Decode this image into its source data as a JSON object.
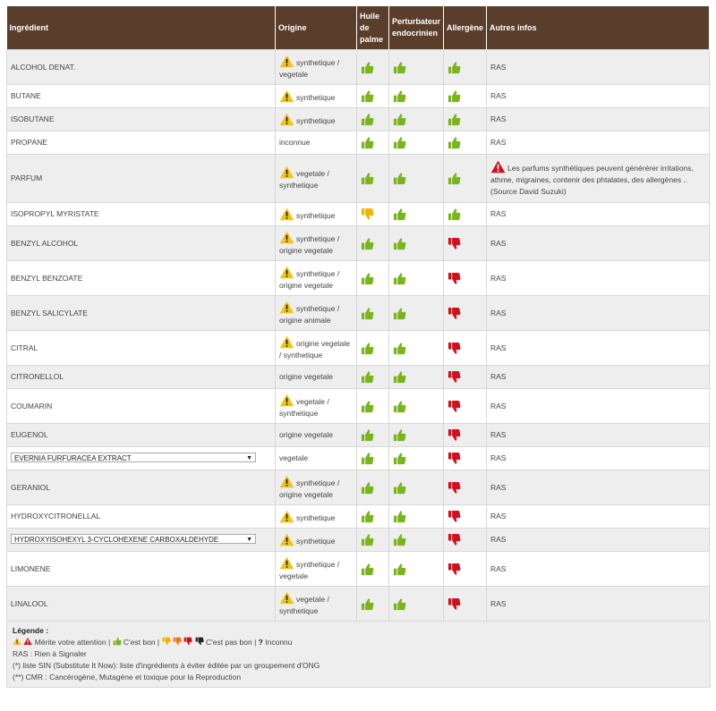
{
  "headers": {
    "ingredient": "Ingrédient",
    "origin": "Origine",
    "palm_l1": "Huile",
    "palm_l2": "de",
    "palm_l3": "palme",
    "endo_l1": "Perturbateur",
    "endo_l2": "endocrinien",
    "allergen": "Allergène",
    "other": "Autres infos"
  },
  "rows": [
    {
      "name": "ALCOHOL DENAT.",
      "select": false,
      "warn": true,
      "origin": "synthetique / vegetale",
      "palm": "good",
      "endo": "good",
      "allergen": "good",
      "info": "RAS"
    },
    {
      "name": "BUTANE",
      "select": false,
      "warn": true,
      "origin": "synthetique",
      "palm": "good",
      "endo": "good",
      "allergen": "good",
      "info": "RAS"
    },
    {
      "name": "ISOBUTANE",
      "select": false,
      "warn": true,
      "origin": "synthetique",
      "palm": "good",
      "endo": "good",
      "allergen": "good",
      "info": "RAS"
    },
    {
      "name": "PROPANE",
      "select": false,
      "warn": false,
      "origin": "inconnue",
      "palm": "good",
      "endo": "good",
      "allergen": "good",
      "info": "RAS"
    },
    {
      "name": "PARFUM",
      "select": false,
      "warn": true,
      "origin": "vegetale / synthetique",
      "palm": "good",
      "endo": "good",
      "allergen": "good",
      "info": "Les parfums synthétiques peuvent générérer irritations, athme, migraines, contenir des phtalates, des allergènes .. (Source David Suzuki)",
      "info_alert": true
    },
    {
      "name": "ISOPROPYL MYRISTATE",
      "select": false,
      "warn": true,
      "origin": "synthetique",
      "palm": "meh",
      "endo": "good",
      "allergen": "good",
      "info": "RAS"
    },
    {
      "name": "BENZYL ALCOHOL",
      "select": false,
      "warn": true,
      "origin": "synthetique / origine vegetale",
      "palm": "good",
      "endo": "good",
      "allergen": "bad",
      "info": "RAS"
    },
    {
      "name": "BENZYL BENZOATE",
      "select": false,
      "warn": true,
      "origin": "synthetique / origine vegetale",
      "palm": "good",
      "endo": "good",
      "allergen": "bad",
      "info": "RAS"
    },
    {
      "name": "BENZYL SALICYLATE",
      "select": false,
      "warn": true,
      "origin": "synthetique / origine animale",
      "palm": "good",
      "endo": "good",
      "allergen": "bad",
      "info": "RAS"
    },
    {
      "name": "CITRAL",
      "select": false,
      "warn": true,
      "origin": "origine vegetale / synthetique",
      "palm": "good",
      "endo": "good",
      "allergen": "bad",
      "info": "RAS"
    },
    {
      "name": "CITRONELLOL",
      "select": false,
      "warn": false,
      "origin": "origine vegetale",
      "palm": "good",
      "endo": "good",
      "allergen": "bad",
      "info": "RAS"
    },
    {
      "name": "COUMARIN",
      "select": false,
      "warn": true,
      "origin": "vegetale / synthetique",
      "palm": "good",
      "endo": "good",
      "allergen": "bad",
      "info": "RAS"
    },
    {
      "name": "EUGENOL",
      "select": false,
      "warn": false,
      "origin": "origine vegetale",
      "palm": "good",
      "endo": "good",
      "allergen": "bad",
      "info": "RAS"
    },
    {
      "name": "EVERNIA FURFURACEA EXTRACT",
      "select": true,
      "warn": false,
      "origin": "vegetale",
      "palm": "good",
      "endo": "good",
      "allergen": "bad",
      "info": "RAS"
    },
    {
      "name": "GERANIOL",
      "select": false,
      "warn": true,
      "origin": "synthetique / origine vegetale",
      "palm": "good",
      "endo": "good",
      "allergen": "bad",
      "info": "RAS"
    },
    {
      "name": "HYDROXYCITRONELLAL",
      "select": false,
      "warn": true,
      "origin": "synthetique",
      "palm": "good",
      "endo": "good",
      "allergen": "bad",
      "info": "RAS"
    },
    {
      "name": "HYDROXYISOHEXYL 3-CYCLOHEXENE CARBOXALDEHYDE",
      "select": true,
      "warn": true,
      "origin": "synthetique",
      "palm": "good",
      "endo": "good",
      "allergen": "bad",
      "info": "RAS"
    },
    {
      "name": "LIMONENE",
      "select": false,
      "warn": true,
      "origin": "synthetique / vegetale",
      "palm": "good",
      "endo": "good",
      "allergen": "bad",
      "info": "RAS"
    },
    {
      "name": "LINALOOL",
      "select": false,
      "warn": true,
      "origin": "vegetale / synthetique",
      "palm": "good",
      "endo": "good",
      "allergen": "bad",
      "info": "RAS"
    }
  ],
  "legend": {
    "title": "Légende :",
    "line1_a": "Mérite votre attention |",
    "line1_b": "C'est bon |",
    "line1_c": "C'est pas bon |",
    "line1_q": "?",
    "line1_d": "Inconnu",
    "line2": "RAS : Rien à Signaler",
    "line3": "(*) liste SIN (Substitute It Now): liste d'ingrédients à éviter éditée par un groupement d'ONG",
    "line4": "(**) CMR : Cancérogène, Mutagène et toxique pour la Reproduction"
  },
  "colors": {
    "header_bg": "#5a3e2b",
    "good": "#7ab51d",
    "meh": "#f0b400",
    "bad": "#d0101c",
    "warn": "#f0c419",
    "alert": "#d0101c"
  }
}
